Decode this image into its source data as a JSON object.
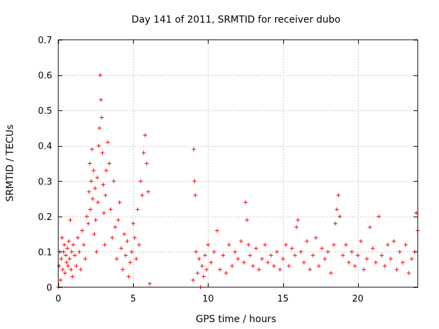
{
  "chart_data": {
    "type": "scatter",
    "title": "Day 141 of 2011, SRMTID for receiver dubo",
    "xlabel": "GPS time / hours",
    "ylabel": "SRMTID / TECUs",
    "xlim": [
      0,
      24
    ],
    "ylim": [
      0,
      0.7
    ],
    "xticks": [
      0,
      5,
      10,
      15,
      20
    ],
    "yticks": [
      0,
      0.1,
      0.2,
      0.3,
      0.4,
      0.5,
      0.6,
      0.7
    ],
    "grid": true,
    "marker": "+",
    "color": "#ff0000",
    "series": [
      {
        "name": "SRMTID",
        "x": [
          0.0,
          0.05,
          0.1,
          0.15,
          0.2,
          0.25,
          0.3,
          0.35,
          0.4,
          0.45,
          0.5,
          0.55,
          0.6,
          0.65,
          0.7,
          0.75,
          0.8,
          0.85,
          0.9,
          0.95,
          1.0,
          1.1,
          1.2,
          1.3,
          1.4,
          1.5,
          1.6,
          1.7,
          1.8,
          1.9,
          2.0,
          2.05,
          2.1,
          2.15,
          2.2,
          2.25,
          2.3,
          2.35,
          2.4,
          2.45,
          2.5,
          2.55,
          2.6,
          2.65,
          2.7,
          2.75,
          2.8,
          2.85,
          2.9,
          2.95,
          3.0,
          3.05,
          3.1,
          3.15,
          3.2,
          3.3,
          3.4,
          3.5,
          3.6,
          3.7,
          3.8,
          3.9,
          4.0,
          4.1,
          4.2,
          4.3,
          4.4,
          4.5,
          4.6,
          4.7,
          4.8,
          4.9,
          5.0,
          5.1,
          5.2,
          5.3,
          5.4,
          5.5,
          5.6,
          5.7,
          5.8,
          5.9,
          6.0,
          6.1,
          9.0,
          9.05,
          9.1,
          9.15,
          9.2,
          9.3,
          9.4,
          9.5,
          9.6,
          9.7,
          9.8,
          9.9,
          10.0,
          10.2,
          10.4,
          10.6,
          10.8,
          11.0,
          11.2,
          11.4,
          11.6,
          11.8,
          12.0,
          12.2,
          12.4,
          12.5,
          12.6,
          12.7,
          12.8,
          13.0,
          13.2,
          13.4,
          13.6,
          13.8,
          14.0,
          14.2,
          14.4,
          14.6,
          14.8,
          15.0,
          15.2,
          15.4,
          15.6,
          15.8,
          15.9,
          16.0,
          16.2,
          16.4,
          16.6,
          16.8,
          17.0,
          17.2,
          17.4,
          17.6,
          17.8,
          18.0,
          18.2,
          18.4,
          18.5,
          18.6,
          18.7,
          18.8,
          19.0,
          19.2,
          19.4,
          19.6,
          19.8,
          20.0,
          20.2,
          20.4,
          20.6,
          20.8,
          21.0,
          21.2,
          21.4,
          21.6,
          21.8,
          22.0,
          22.2,
          22.4,
          22.6,
          22.8,
          23.0,
          23.2,
          23.4,
          23.6,
          23.8,
          23.9,
          24.0
        ],
        "y": [
          0.0,
          0.06,
          0.1,
          0.02,
          0.08,
          0.14,
          0.05,
          0.1,
          0.12,
          0.04,
          0.09,
          0.07,
          0.11,
          0.06,
          0.13,
          0.08,
          0.19,
          0.05,
          0.1,
          0.03,
          0.12,
          0.09,
          0.06,
          0.14,
          0.1,
          0.05,
          0.16,
          0.12,
          0.08,
          0.2,
          0.18,
          0.27,
          0.35,
          0.22,
          0.3,
          0.39,
          0.25,
          0.33,
          0.15,
          0.28,
          0.19,
          0.1,
          0.31,
          0.24,
          0.4,
          0.45,
          0.6,
          0.53,
          0.48,
          0.38,
          0.29,
          0.21,
          0.12,
          0.26,
          0.33,
          0.41,
          0.35,
          0.22,
          0.14,
          0.3,
          0.17,
          0.08,
          0.19,
          0.24,
          0.11,
          0.05,
          0.15,
          0.09,
          0.13,
          0.03,
          0.07,
          0.1,
          0.18,
          0.14,
          0.08,
          0.22,
          0.12,
          0.3,
          0.26,
          0.38,
          0.43,
          0.35,
          0.27,
          0.01,
          0.02,
          0.39,
          0.3,
          0.26,
          0.1,
          0.04,
          0.08,
          0.0,
          0.06,
          0.03,
          0.09,
          0.05,
          0.12,
          0.07,
          0.1,
          0.16,
          0.05,
          0.09,
          0.04,
          0.12,
          0.06,
          0.1,
          0.08,
          0.13,
          0.07,
          0.24,
          0.19,
          0.12,
          0.09,
          0.06,
          0.11,
          0.05,
          0.08,
          0.12,
          0.07,
          0.09,
          0.06,
          0.1,
          0.05,
          0.08,
          0.12,
          0.06,
          0.11,
          0.09,
          0.17,
          0.19,
          0.1,
          0.07,
          0.13,
          0.05,
          0.09,
          0.14,
          0.06,
          0.11,
          0.08,
          0.1,
          0.04,
          0.12,
          0.18,
          0.22,
          0.26,
          0.2,
          0.09,
          0.12,
          0.07,
          0.1,
          0.06,
          0.09,
          0.13,
          0.05,
          0.08,
          0.17,
          0.11,
          0.07,
          0.2,
          0.09,
          0.06,
          0.12,
          0.08,
          0.13,
          0.05,
          0.1,
          0.07,
          0.12,
          0.04,
          0.08,
          0.1,
          0.21,
          0.16
        ]
      }
    ]
  }
}
